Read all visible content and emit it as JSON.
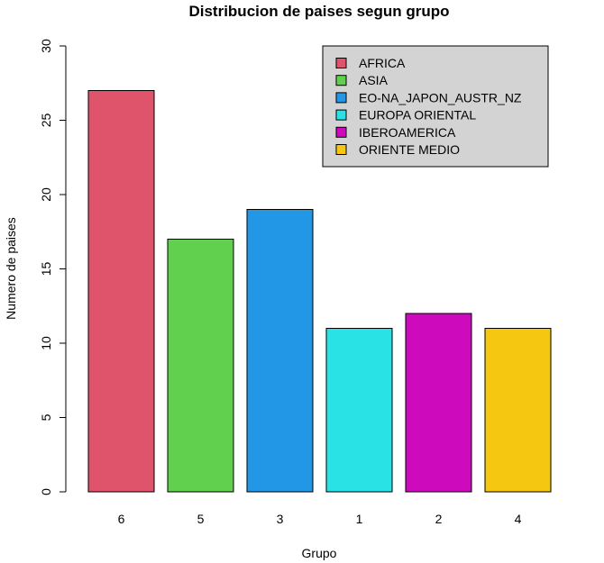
{
  "chart_data": {
    "type": "bar",
    "title": "Distribucion de paises segun grupo",
    "xlabel": "Grupo",
    "ylabel": "Numero de paises",
    "categories": [
      "6",
      "5",
      "3",
      "1",
      "2",
      "4"
    ],
    "values": [
      27,
      17,
      19,
      11,
      12,
      11
    ],
    "colors": [
      "#DF536B",
      "#61D04F",
      "#2297E6",
      "#28E2E5",
      "#CD0BBC",
      "#F5C710"
    ],
    "ylim": [
      0,
      30
    ],
    "yticks": [
      "0",
      "5",
      "10",
      "15",
      "20",
      "25",
      "30"
    ],
    "grid": false,
    "legend": {
      "position": "top-right",
      "background": "#D3D3D3",
      "entries": [
        {
          "label": "AFRICA",
          "color": "#DF536B"
        },
        {
          "label": "ASIA",
          "color": "#61D04F"
        },
        {
          "label": "EO-NA_JAPON_AUSTR_NZ",
          "color": "#2297E6"
        },
        {
          "label": "EUROPA ORIENTAL",
          "color": "#28E2E5"
        },
        {
          "label": "IBEROAMERICA",
          "color": "#CD0BBC"
        },
        {
          "label": "ORIENTE MEDIO",
          "color": "#F5C710"
        }
      ]
    }
  }
}
